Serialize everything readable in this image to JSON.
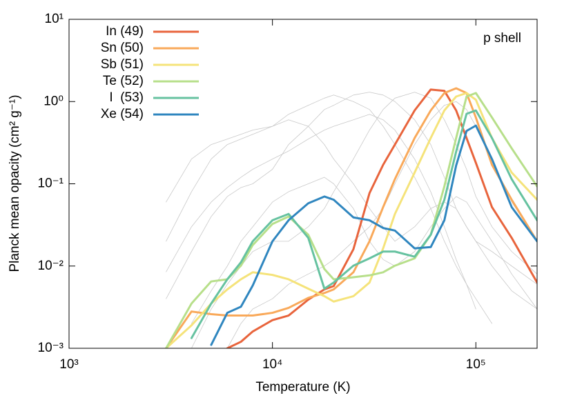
{
  "chart_data": {
    "type": "line",
    "xlabel": "Temperature (K)",
    "ylabel": "Planck mean opacity (cm² g⁻¹)",
    "annotation": "p shell",
    "xscale": "log",
    "yscale": "log",
    "grid": false,
    "legend": "upper left",
    "xlim": [
      1000,
      200000
    ],
    "ylim": [
      0.001,
      10
    ],
    "xticks": [
      {
        "value": 1000,
        "label": "10³"
      },
      {
        "value": 10000,
        "label": "10⁴"
      },
      {
        "value": 100000,
        "label": "10⁵"
      }
    ],
    "yticks": [
      {
        "value": 0.001,
        "label": "10⁻³"
      },
      {
        "value": 0.01,
        "label": "10⁻²"
      },
      {
        "value": 0.1,
        "label": "10⁻¹"
      },
      {
        "value": 1,
        "label": "10⁰"
      },
      {
        "value": 10,
        "label": "10¹"
      }
    ],
    "x": [
      3000,
      4000,
      5000,
      6000,
      7000,
      8000,
      10000,
      12000,
      15000,
      18000,
      20000,
      25000,
      30000,
      35000,
      40000,
      50000,
      60000,
      70000,
      80000,
      90000,
      100000,
      120000,
      150000,
      200000
    ],
    "series": [
      {
        "color": "#c8c8c8",
        "values": [
          0.0085,
          0.03,
          0.06,
          0.09,
          0.12,
          0.15,
          0.2,
          0.25,
          0.35,
          0.45,
          0.5,
          0.6,
          0.7,
          0.6,
          0.45,
          0.2,
          0.08,
          0.03,
          0.012,
          0.006,
          0.003,
          null,
          null,
          null
        ]
      },
      {
        "color": "#c8c8c8",
        "values": [
          0.02,
          0.08,
          0.2,
          0.3,
          0.35,
          0.4,
          0.5,
          0.7,
          0.9,
          1.1,
          1.2,
          1.0,
          0.8,
          0.5,
          0.3,
          0.12,
          0.05,
          0.02,
          0.01,
          0.006,
          0.004,
          0.002,
          null,
          null
        ]
      },
      {
        "color": "#c8c8c8",
        "values": [
          0.004,
          0.015,
          0.04,
          0.07,
          0.09,
          0.1,
          0.15,
          0.3,
          0.5,
          0.8,
          0.9,
          1.2,
          1.3,
          1.2,
          1.0,
          0.6,
          0.3,
          0.12,
          0.05,
          0.03,
          0.02,
          0.015,
          0.01,
          0.006
        ]
      },
      {
        "color": "#c8c8c8",
        "values": [
          null,
          0.001,
          0.003,
          0.006,
          0.01,
          0.015,
          0.02,
          0.02,
          0.03,
          0.05,
          0.08,
          0.2,
          0.45,
          0.8,
          1.1,
          1.3,
          1.1,
          0.6,
          0.3,
          0.15,
          0.07,
          0.03,
          0.015,
          0.008
        ]
      },
      {
        "color": "#c8c8c8",
        "values": [
          null,
          null,
          null,
          0.001,
          0.002,
          0.003,
          0.004,
          0.006,
          0.008,
          0.01,
          0.012,
          0.02,
          0.03,
          0.05,
          0.1,
          0.3,
          0.6,
          0.9,
          1.0,
          0.8,
          0.5,
          0.2,
          0.06,
          0.02
        ]
      },
      {
        "color": "#c8c8c8",
        "values": [
          0.06,
          0.2,
          0.3,
          0.35,
          0.4,
          0.45,
          0.5,
          0.6,
          0.5,
          0.3,
          0.2,
          0.1,
          0.05,
          0.03,
          0.02,
          0.03,
          0.05,
          0.06,
          0.05,
          0.03,
          0.02,
          0.01,
          0.005,
          0.003
        ]
      },
      {
        "color": "#c8c8c8",
        "values": [
          null,
          0.002,
          0.005,
          0.01,
          0.02,
          0.03,
          0.06,
          0.08,
          0.1,
          0.12,
          0.1,
          0.05,
          0.02,
          0.012,
          0.01,
          0.015,
          0.03,
          0.05,
          0.07,
          0.06,
          0.04,
          0.02,
          0.008,
          0.003
        ]
      },
      {
        "name": "In (49)",
        "color": "#e8643c",
        "values": [
          null,
          null,
          null,
          0.001,
          0.0012,
          0.0016,
          0.0022,
          0.0025,
          0.0039,
          0.0052,
          0.0057,
          0.016,
          0.077,
          0.17,
          0.3,
          0.78,
          1.4,
          1.35,
          0.78,
          0.36,
          0.18,
          0.052,
          0.022,
          0.0063
        ]
      },
      {
        "name": "Sn (50)",
        "color": "#f9a95a",
        "values": [
          0.001,
          0.0028,
          0.0026,
          0.0025,
          0.0025,
          0.0025,
          0.0027,
          0.0031,
          0.0041,
          0.0047,
          0.0052,
          0.0084,
          0.02,
          0.052,
          0.114,
          0.36,
          0.78,
          1.27,
          1.45,
          1.27,
          0.64,
          0.17,
          0.064,
          0.02
        ]
      },
      {
        "name": "Sb (51)",
        "color": "#f5e37a",
        "values": [
          0.001,
          0.0019,
          0.0035,
          0.0052,
          0.0069,
          0.0084,
          0.0078,
          0.0069,
          0.0053,
          0.0043,
          0.0037,
          0.0043,
          0.0063,
          0.0164,
          0.043,
          0.137,
          0.36,
          0.78,
          1.15,
          1.27,
          1.05,
          0.36,
          0.137,
          0.064
        ]
      },
      {
        "name": "Te (52)",
        "color": "#b7df8a",
        "values": [
          0.001,
          0.0035,
          0.0065,
          0.0069,
          0.0101,
          0.018,
          0.0325,
          0.04,
          0.024,
          0.0092,
          0.0069,
          0.0073,
          0.0077,
          0.0084,
          0.0101,
          0.0124,
          0.024,
          0.093,
          0.36,
          1.15,
          1.27,
          0.64,
          0.27,
          0.093
        ]
      },
      {
        "name": "I  (53)",
        "color": "#66c2a0",
        "values": [
          null,
          0.00133,
          0.0035,
          0.0069,
          0.0111,
          0.02,
          0.036,
          0.043,
          0.022,
          0.0053,
          0.0063,
          0.0101,
          0.0124,
          0.015,
          0.015,
          0.013,
          0.024,
          0.064,
          0.246,
          0.71,
          0.78,
          0.36,
          0.114,
          0.036
        ]
      },
      {
        "name": "Xe (54)",
        "color": "#2f86bf",
        "values": [
          null,
          null,
          0.0011,
          0.0027,
          0.0032,
          0.0058,
          0.02,
          0.036,
          0.058,
          0.07,
          0.064,
          0.039,
          0.036,
          0.029,
          0.027,
          0.0164,
          0.017,
          0.036,
          0.167,
          0.44,
          0.51,
          0.2,
          0.052,
          0.02
        ]
      }
    ]
  }
}
